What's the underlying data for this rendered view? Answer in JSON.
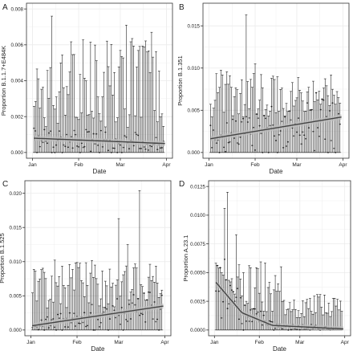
{
  "figure": {
    "panels": [
      "A",
      "B",
      "C",
      "D"
    ]
  },
  "colors": {
    "panel_bg": "#ffffff",
    "grid": "#ebebeb",
    "axis": "#333333",
    "bars": "#111111",
    "trend": "#444444",
    "ribbon": "#bdbdbd",
    "text": "#222222"
  },
  "chart_data": [
    {
      "type": "scatter",
      "panel_label": "A",
      "title": "",
      "xlabel": "Date",
      "ylabel": "Proportion B.1.1.7+E484K",
      "xlim": [
        "2021-01-01",
        "2021-04-01"
      ],
      "xticks": [
        {
          "date": "2021-01-01",
          "label": "Jan"
        },
        {
          "date": "2021-02-01",
          "label": "Feb"
        },
        {
          "date": "2021-03-01",
          "label": "Mar"
        },
        {
          "date": "2021-04-01",
          "label": "Apr"
        }
      ],
      "ylim": [
        0,
        0.008
      ],
      "yticks": [
        {
          "value": 0,
          "label": "0.000"
        },
        {
          "value": 0.002,
          "label": "0.002"
        },
        {
          "value": 0.004,
          "label": "0.004"
        },
        {
          "value": 0.006,
          "label": "0.006"
        },
        {
          "value": 0.008,
          "label": "0.008"
        }
      ],
      "n_days": 88,
      "error_upper": {
        "min": 0.0014,
        "max": 0.0058,
        "peaks": [
          {
            "day": 12,
            "value": 0.0076
          },
          {
            "day": 62,
            "value": 0.0071
          },
          {
            "day": 79,
            "value": 0.0067
          }
        ]
      },
      "trend": [
        {
          "date": "2021-01-01",
          "value": 0.0008
        },
        {
          "date": "2021-03-31",
          "value": 0.0005
        }
      ],
      "grid": true
    },
    {
      "type": "scatter",
      "panel_label": "B",
      "title": "",
      "xlabel": "Date",
      "ylabel": "Proportion B.1.351",
      "xlim": [
        "2021-01-01",
        "2021-04-01"
      ],
      "xticks": [
        {
          "date": "2021-01-01",
          "label": "Jan"
        },
        {
          "date": "2021-02-01",
          "label": "Feb"
        },
        {
          "date": "2021-03-01",
          "label": "Mar"
        },
        {
          "date": "2021-04-01",
          "label": "Apr"
        }
      ],
      "ylim": [
        0,
        0.017
      ],
      "yticks": [
        {
          "value": 0,
          "label": "0.000"
        },
        {
          "value": 0.005,
          "label": "0.005"
        },
        {
          "value": 0.01,
          "label": "0.010"
        },
        {
          "value": 0.015,
          "label": "0.015"
        }
      ],
      "n_days": 88,
      "error_upper": {
        "min": 0.004,
        "max": 0.0095,
        "peaks": [
          {
            "day": 24,
            "value": 0.0163
          },
          {
            "day": 30,
            "value": 0.0105
          }
        ]
      },
      "trend": [
        {
          "date": "2021-01-01",
          "value": 0.0016
        },
        {
          "date": "2021-03-31",
          "value": 0.0042
        }
      ],
      "grid": true
    },
    {
      "type": "scatter",
      "panel_label": "C",
      "title": "",
      "xlabel": "Date",
      "ylabel": "Proportion B.1.525",
      "xlim": [
        "2021-01-01",
        "2021-04-01"
      ],
      "xticks": [
        {
          "date": "2021-01-01",
          "label": "Jan"
        },
        {
          "date": "2021-02-01",
          "label": "Feb"
        },
        {
          "date": "2021-03-01",
          "label": "Mar"
        },
        {
          "date": "2021-04-01",
          "label": "Apr"
        }
      ],
      "ylim": [
        0,
        0.021
      ],
      "yticks": [
        {
          "value": 0,
          "label": "0.000"
        },
        {
          "value": 0.005,
          "label": "0.005"
        },
        {
          "value": 0.01,
          "label": "0.010"
        },
        {
          "value": 0.015,
          "label": "0.015"
        },
        {
          "value": 0.02,
          "label": "0.020"
        }
      ],
      "n_days": 88,
      "error_upper": {
        "min": 0.003,
        "max": 0.0095,
        "peaks": [
          {
            "day": 58,
            "value": 0.0163
          },
          {
            "day": 72,
            "value": 0.0204
          },
          {
            "day": 64,
            "value": 0.0125
          }
        ]
      },
      "trend": [
        {
          "date": "2021-01-01",
          "value": 0.0006
        },
        {
          "date": "2021-03-31",
          "value": 0.0035
        }
      ],
      "grid": true
    },
    {
      "type": "scatter",
      "panel_label": "D",
      "title": "",
      "xlabel": "Date",
      "ylabel": "Proportion A.23.1",
      "xlim": [
        "2021-01-01",
        "2021-04-01"
      ],
      "xticks": [
        {
          "date": "2021-01-01",
          "label": "Jan"
        },
        {
          "date": "2021-02-01",
          "label": "Feb"
        },
        {
          "date": "2021-03-01",
          "label": "Mar"
        },
        {
          "date": "2021-04-01",
          "label": "Apr"
        }
      ],
      "ylim": [
        0,
        0.0125
      ],
      "yticks": [
        {
          "value": 0,
          "label": "0.0000"
        },
        {
          "value": 0.0025,
          "label": "0.0025"
        },
        {
          "value": 0.005,
          "label": "0.0050"
        },
        {
          "value": 0.0075,
          "label": "0.0075"
        },
        {
          "value": 0.01,
          "label": "0.0100"
        },
        {
          "value": 0.0125,
          "label": "0.0125"
        }
      ],
      "n_days": 88,
      "error_upper": {
        "min": 0.0015,
        "max": 0.006,
        "peaks": [
          {
            "day": 6,
            "value": 0.0106
          },
          {
            "day": 8,
            "value": 0.012
          },
          {
            "day": 14,
            "value": 0.0083
          }
        ]
      },
      "trend": [
        {
          "date": "2021-01-01",
          "value": 0.0043
        },
        {
          "date": "2021-01-20",
          "value": 0.0015
        },
        {
          "date": "2021-02-10",
          "value": 0.0004
        },
        {
          "date": "2021-03-31",
          "value": 0.0001
        }
      ],
      "grid": true
    }
  ]
}
